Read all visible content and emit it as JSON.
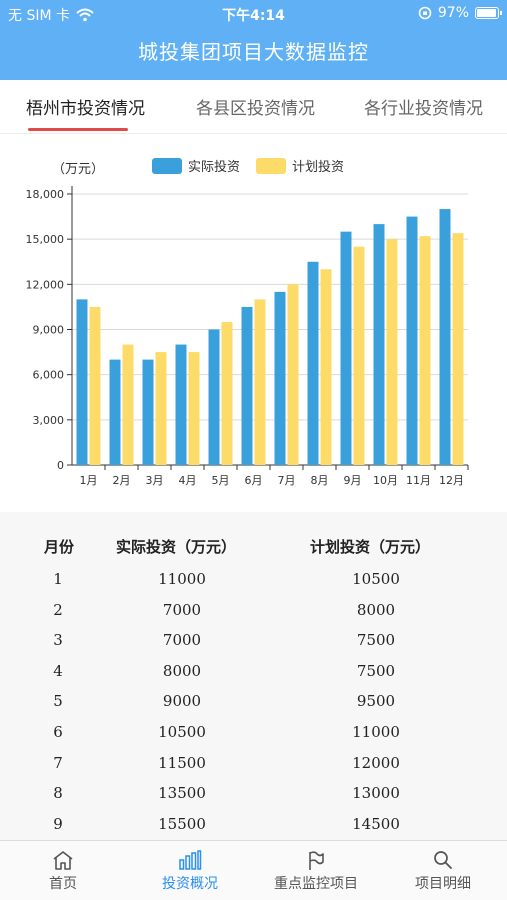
{
  "status_bar": {
    "carrier": "无 SIM 卡",
    "time": "下午4:14",
    "battery": "97%"
  },
  "nav_title": "城投集团项目大数据监控",
  "tabs": [
    {
      "label": "梧州市投资情况",
      "active": true
    },
    {
      "label": "各县区投资情况",
      "active": false
    },
    {
      "label": "各行业投资情况",
      "active": false
    }
  ],
  "colors": {
    "primary": "#5fb0f4",
    "actual": "#3aa0dc",
    "plan": "#fddb68",
    "active_tab": "#2b8ff0",
    "indicator": "#e24a4a"
  },
  "chart_data": {
    "type": "bar",
    "title": "",
    "unit_label": "（万元）",
    "categories": [
      "1月",
      "2月",
      "3月",
      "4月",
      "5月",
      "6月",
      "7月",
      "8月",
      "9月",
      "10月",
      "11月",
      "12月"
    ],
    "series": [
      {
        "name": "实际投资",
        "color": "#3aa0dc",
        "values": [
          11000,
          7000,
          7000,
          8000,
          9000,
          10500,
          11500,
          13500,
          15500,
          16000,
          16500,
          17000
        ]
      },
      {
        "name": "计划投资",
        "color": "#fddb68",
        "values": [
          10500,
          8000,
          7500,
          7500,
          9500,
          11000,
          12000,
          13000,
          14500,
          15000,
          15200,
          15400
        ]
      }
    ],
    "ylim": [
      0,
      18000
    ],
    "yticks": [
      0,
      3000,
      6000,
      9000,
      12000,
      15000,
      18000
    ],
    "ytick_labels": [
      "0",
      "3,000",
      "6,000",
      "9,000",
      "12,000",
      "15,000",
      "18,000"
    ],
    "grid": true,
    "legend": "top"
  },
  "table": {
    "headers": [
      "月份",
      "实际投资（万元）",
      "计划投资（万元）"
    ],
    "rows": [
      [
        "1",
        "11000",
        "10500"
      ],
      [
        "2",
        "7000",
        "8000"
      ],
      [
        "3",
        "7000",
        "7500"
      ],
      [
        "4",
        "8000",
        "7500"
      ],
      [
        "5",
        "9000",
        "9500"
      ],
      [
        "6",
        "10500",
        "11000"
      ],
      [
        "7",
        "11500",
        "12000"
      ],
      [
        "8",
        "13500",
        "13000"
      ],
      [
        "9",
        "15500",
        "14500"
      ]
    ]
  },
  "tabbar": [
    {
      "label": "首页",
      "icon": "home-icon",
      "active": false
    },
    {
      "label": "投资概况",
      "icon": "bar-chart-icon",
      "active": true
    },
    {
      "label": "重点监控项目",
      "icon": "flag-icon",
      "active": false
    },
    {
      "label": "项目明细",
      "icon": "search-icon",
      "active": false
    }
  ]
}
